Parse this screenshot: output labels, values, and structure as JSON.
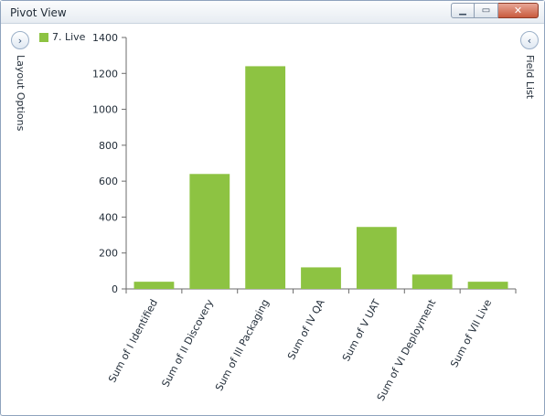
{
  "window": {
    "title": "Pivot View",
    "minimize_icon": "minimize-icon",
    "maximize_icon": "maximize-icon",
    "close_icon": "close-icon"
  },
  "left_panel": {
    "label": "Layout Options",
    "toggle_icon": "chevron-right-icon"
  },
  "right_panel": {
    "label": "Field List",
    "toggle_icon": "chevron-left-icon"
  },
  "colors": {
    "bar": "#8dc342",
    "axis": "#6b6b6b"
  },
  "chart_data": {
    "type": "bar",
    "categories": [
      "Sum of I Identified",
      "Sum of II Discovery",
      "Sum of III Packaging",
      "Sum of IV QA",
      "Sum of V UAT",
      "Sum of VI Deployment",
      "Sum of VII Live"
    ],
    "series": [
      {
        "name": "7. Live",
        "values": [
          40,
          640,
          1240,
          120,
          345,
          80,
          40
        ]
      }
    ],
    "ylim": [
      0,
      1400
    ],
    "yticks": [
      0,
      200,
      400,
      600,
      800,
      1000,
      1200,
      1400
    ],
    "legend": "top-left",
    "grid": false
  }
}
